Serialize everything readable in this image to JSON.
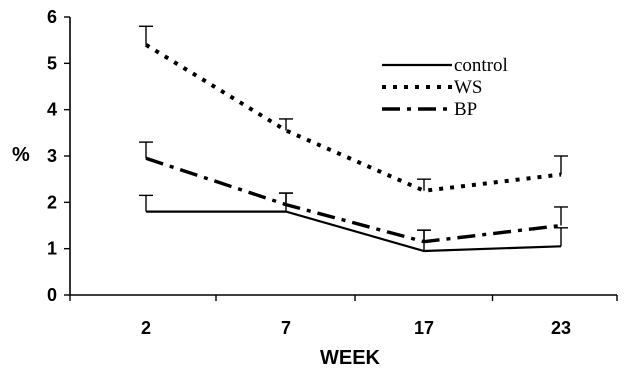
{
  "chart_data": {
    "type": "line",
    "title": "",
    "xlabel": "WEEK",
    "ylabel": "%",
    "categories": [
      "2",
      "7",
      "17",
      "23"
    ],
    "ylim": [
      0,
      6
    ],
    "yticks": [
      0,
      1,
      2,
      3,
      4,
      5,
      6
    ],
    "grid": false,
    "legend_position": "top-right",
    "series": [
      {
        "name": "control",
        "style": "solid",
        "color": "#000000",
        "values": [
          1.8,
          1.8,
          0.95,
          1.05
        ],
        "error": [
          0.35,
          0.4,
          0.45,
          0.4
        ]
      },
      {
        "name": "WS",
        "style": "dotted",
        "color": "#000000",
        "values": [
          5.4,
          3.55,
          2.25,
          2.6
        ],
        "error": [
          0.4,
          0.25,
          0.25,
          0.4
        ]
      },
      {
        "name": "BP",
        "style": "dashdot",
        "color": "#000000",
        "values": [
          2.95,
          1.95,
          1.15,
          1.5
        ],
        "error": [
          0.35,
          0.25,
          0.25,
          0.4
        ]
      }
    ]
  }
}
